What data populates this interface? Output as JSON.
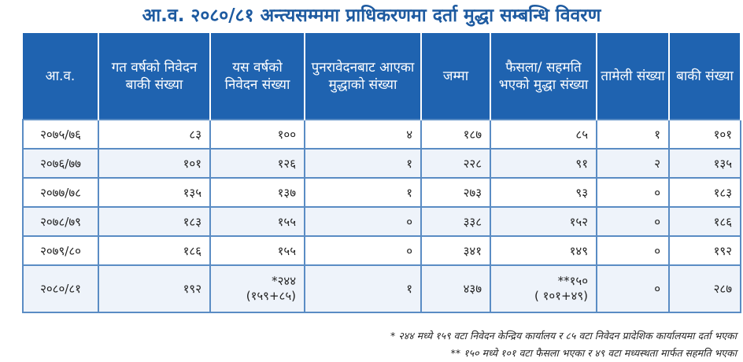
{
  "title": "आ.व. २०८०/८१ अन्त्यसम्ममा प्राधिकरणमा दर्ता मुद्धा सम्बन्धि विवरण",
  "headers": [
    "आ.व.",
    "गत वर्षको निवेदन बाकी संख्या",
    "यस वर्षको निवेदन संख्या",
    "पुनरावेदनबाट आएका मुद्धाको संख्या",
    "जम्मा",
    "फैसला/ सहमति भएको मुद्धा संख्या",
    "तामेली संख्या",
    "बाकी संख्या"
  ],
  "rows": [
    [
      "२०७५/७६",
      "८३",
      "१००",
      "४",
      "१८७",
      "८५",
      "१",
      "१०१"
    ],
    [
      "२०७६/७७",
      "१०१",
      "१२६",
      "१",
      "२२८",
      "९१",
      "२",
      "१३५"
    ],
    [
      "२०७७/७८",
      "१३५",
      "१३७",
      "१",
      "२७३",
      "९३",
      "०",
      "१८३"
    ],
    [
      "२०७८/७९",
      "१८३",
      "१५५",
      "०",
      "३३८",
      "१५२",
      "०",
      "१८६"
    ],
    [
      "२०७९/८०",
      "१८६",
      "१५५",
      "०",
      "३४१",
      "१४९",
      "०",
      "१९२"
    ]
  ],
  "last_row": {
    "year": "२०८०/८१",
    "prev": "१९२",
    "current": "*२४४",
    "current_sub": "(१५९+८५)",
    "appeal": "१",
    "total": "४३७",
    "decided": "**१५०",
    "decided_sub": "( १०१+४९)",
    "shelved": "०",
    "remaining": "२८७"
  },
  "notes": [
    "* २४४ मध्ये १५९ वटा निवेदन केन्द्रिय कार्यालय र ८५ वटा निवेदन प्रादेशिक कार्यालयमा दर्ता भएका",
    "** १५० मध्ये १०१ वटा फैसला भएका र ४९ वटा मध्यस्थता मार्फत सहमति भएका"
  ]
}
